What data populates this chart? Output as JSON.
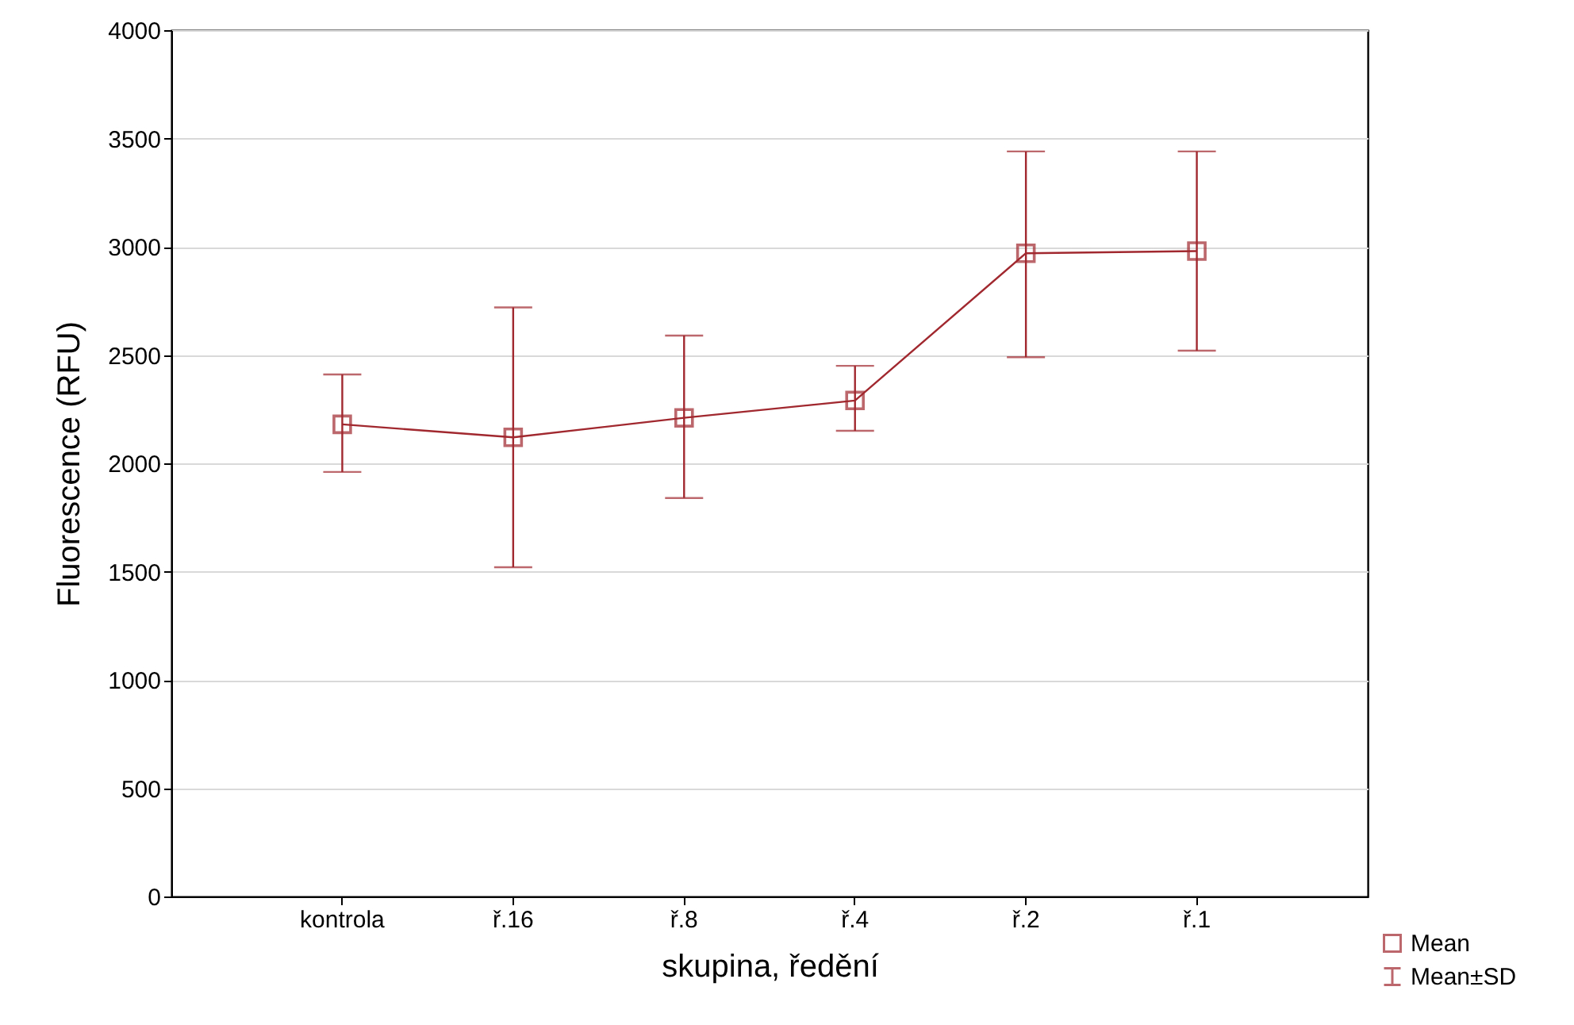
{
  "chart_data": {
    "type": "line",
    "xlabel": "skupina, ředění",
    "ylabel": "Fluorescence (RFU)",
    "categories": [
      "kontrola",
      "ř.16",
      "ř.8",
      "ř.4",
      "ř.2",
      "ř.1"
    ],
    "series": [
      {
        "name": "Mean",
        "color": "#a0282e",
        "values": [
          2180,
          2120,
          2210,
          2290,
          2970,
          2980
        ],
        "errors": [
          [
            1960,
            2410
          ],
          [
            1520,
            2720
          ],
          [
            1840,
            2590
          ],
          [
            2150,
            2450
          ],
          [
            2490,
            3440
          ],
          [
            2520,
            3440
          ]
        ]
      }
    ],
    "annotations": [
      "Mean±SD"
    ],
    "ylim": [
      0,
      4000
    ],
    "yticks": [
      0,
      500,
      1000,
      1500,
      2000,
      2500,
      3000,
      3500,
      4000
    ],
    "grid": "y",
    "legend": "bottom right",
    "marker": "square",
    "line_style": "solid"
  }
}
